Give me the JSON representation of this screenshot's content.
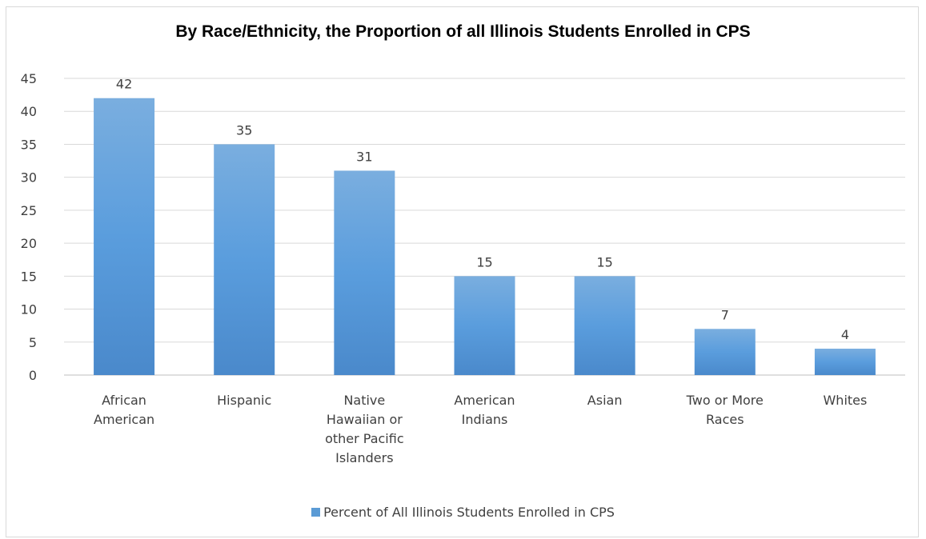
{
  "chart_data": {
    "type": "bar",
    "title": "By Race/Ethnicity, the Proportion of all Illinois Students Enrolled in CPS",
    "categories": [
      [
        "African",
        "American"
      ],
      [
        "Hispanic"
      ],
      [
        "Native",
        "Hawaiian or",
        "other Pacific",
        "Islanders"
      ],
      [
        "American",
        "Indians"
      ],
      [
        "Asian"
      ],
      [
        "Two or More",
        "Races"
      ],
      [
        "Whites"
      ]
    ],
    "series": [
      {
        "name": "Percent of All Illinois Students Enrolled in CPS",
        "values": [
          42,
          35,
          31,
          15,
          15,
          7,
          4
        ]
      }
    ],
    "ylim": [
      0,
      45
    ],
    "yticks": [
      0,
      5,
      10,
      15,
      20,
      25,
      30,
      35,
      40,
      45
    ],
    "grid": true,
    "legend_position": "bottom",
    "bar_color": "#5B9BD5"
  }
}
